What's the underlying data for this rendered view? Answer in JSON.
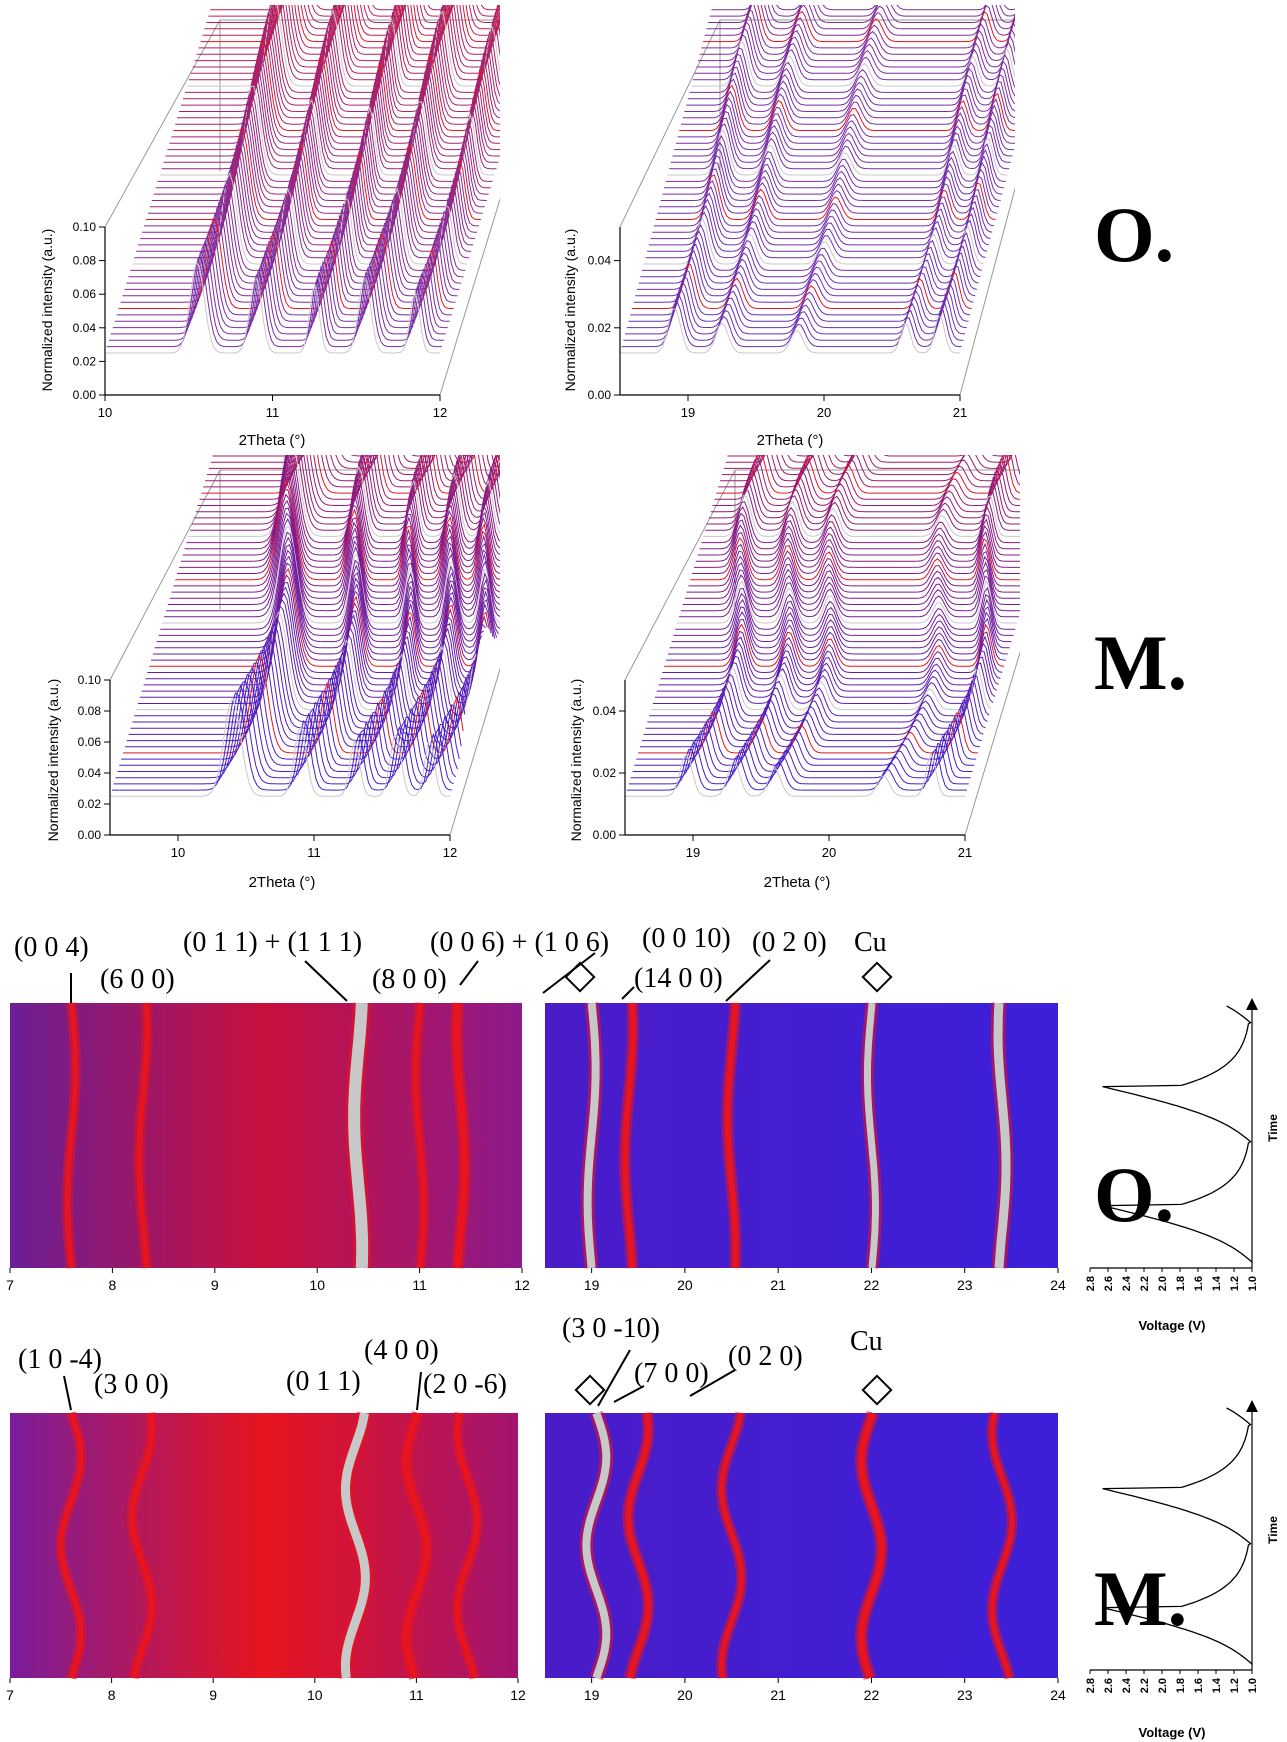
{
  "row_labels": {
    "o_top": "O.",
    "m_top": "M.",
    "o_bottom": "O.",
    "m_bottom": "M."
  },
  "colors": {
    "red": "#e8141e",
    "purple": "#6a2fb8",
    "blue": "#3a1fd6",
    "grey": "#c8c8c8"
  },
  "chart_data": [
    {
      "id": "waterfall_o_low",
      "type": "line",
      "xlabel": "2Theta (°)",
      "ylabel": "Normalized intensity (a.u.)",
      "xlim": [
        10,
        12
      ],
      "ylim": [
        0,
        0.1
      ],
      "xticks": [
        "10",
        "11",
        "12"
      ],
      "yticks": [
        "0.00",
        "0.02",
        "0.04",
        "0.06",
        "0.08",
        "0.10"
      ]
    },
    {
      "id": "waterfall_o_high",
      "type": "line",
      "xlabel": "2Theta (°)",
      "ylabel": "Normalized intensity (a.u.)",
      "xlim": [
        18.5,
        21
      ],
      "ylim": [
        0,
        0.05
      ],
      "xticks": [
        "19",
        "20",
        "21"
      ],
      "yticks": [
        "0.00",
        "0.02",
        "0.04"
      ]
    },
    {
      "id": "waterfall_m_low",
      "type": "line",
      "xlabel": "2Theta (°)",
      "ylabel": "Normalized intensity (a.u.)",
      "xlim": [
        9.5,
        12
      ],
      "ylim": [
        0,
        0.1
      ],
      "xticks": [
        "10",
        "11",
        "12"
      ],
      "yticks": [
        "0.00",
        "0.02",
        "0.04",
        "0.06",
        "0.08",
        "0.10"
      ]
    },
    {
      "id": "waterfall_m_high",
      "type": "line",
      "xlabel": "2Theta (°)",
      "ylabel": "Normalized intensity (a.u.)",
      "xlim": [
        18.5,
        21
      ],
      "ylim": [
        0,
        0.05
      ],
      "xticks": [
        "19",
        "20",
        "21"
      ],
      "yticks": [
        "0.00",
        "0.02",
        "0.04"
      ]
    },
    {
      "id": "heatmap_o_low",
      "type": "heatmap",
      "xlim": [
        7,
        12
      ],
      "xticks": [
        "7",
        "8",
        "9",
        "10",
        "11",
        "12"
      ],
      "annotations": [
        {
          "text": "(0 0 4)",
          "x": 7.6
        },
        {
          "text": "(6 0 0)",
          "x": 8.3
        },
        {
          "text": "(0 1 1) + (1 1 1)",
          "x": 10.4
        },
        {
          "text": "(8 0 0)",
          "x": 11.4
        }
      ]
    },
    {
      "id": "heatmap_o_high",
      "type": "heatmap",
      "xlim": [
        18.5,
        24
      ],
      "xticks": [
        "19",
        "20",
        "21",
        "22",
        "23",
        "24"
      ],
      "annotations": [
        {
          "text": "(0 0 6) + (1 0 6)",
          "x": 19.1
        },
        {
          "text": "(0 0 10)",
          "x": 19.4
        },
        {
          "text": "(14 0 0)",
          "x": 19.4
        },
        {
          "text": "(0 2 0)",
          "x": 20.5
        },
        {
          "text": "Cu",
          "x": 22
        }
      ]
    },
    {
      "id": "voltage_o",
      "type": "line",
      "xlabel": "Voltage (V)",
      "ylabel": "Time",
      "xlim": [
        1.0,
        2.8
      ],
      "xticks": [
        "2.8",
        "2.6",
        "2.4",
        "2.2",
        "2.0",
        "1.8",
        "1.6",
        "1.4",
        "1.2",
        "1.0"
      ]
    },
    {
      "id": "heatmap_m_low",
      "type": "heatmap",
      "xlim": [
        7,
        12
      ],
      "xticks": [
        "7",
        "8",
        "9",
        "10",
        "11",
        "12"
      ],
      "annotations": [
        {
          "text": "(1 0 -4)",
          "x": 7.6
        },
        {
          "text": "(3 0 0)",
          "x": 8.3
        },
        {
          "text": "(0 1 1)",
          "x": 10.4
        },
        {
          "text": "(4 0 0)",
          "x": 11.0
        },
        {
          "text": "(2 0 -6)",
          "x": 11.5
        }
      ]
    },
    {
      "id": "heatmap_m_high",
      "type": "heatmap",
      "xlim": [
        18.5,
        24
      ],
      "xticks": [
        "19",
        "20",
        "21",
        "22",
        "23",
        "24"
      ],
      "annotations": [
        {
          "text": "(3 0 -10)",
          "x": 19.1
        },
        {
          "text": "(7 0 0)",
          "x": 19.5
        },
        {
          "text": "(0 2 0)",
          "x": 20.1
        },
        {
          "text": "Cu",
          "x": 22
        }
      ]
    },
    {
      "id": "voltage_m",
      "type": "line",
      "xlabel": "Voltage (V)",
      "ylabel": "Time",
      "xlim": [
        1.0,
        2.8
      ],
      "xticks": [
        "2.8",
        "2.6",
        "2.4",
        "2.2",
        "2.0",
        "1.8",
        "1.6",
        "1.4",
        "1.2",
        "1.0"
      ]
    }
  ]
}
